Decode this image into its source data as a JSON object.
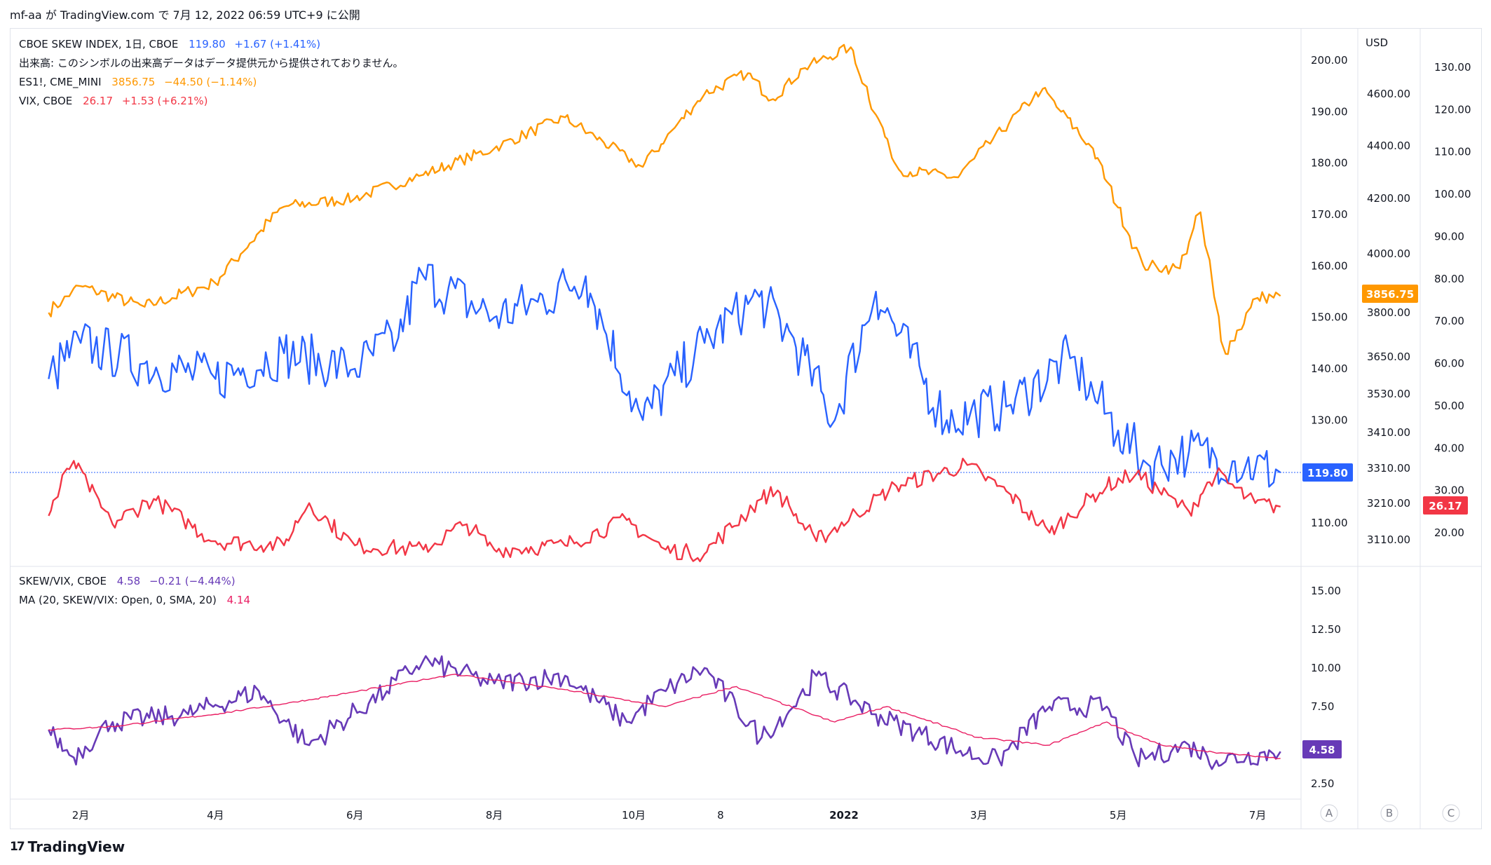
{
  "header": {
    "text": "mf-aa が TradingView.com で 7月 12, 2022 06:59 UTC+9 に公開"
  },
  "footer": {
    "brand": "TradingView",
    "logo_glyph": "17"
  },
  "legend": {
    "skew": {
      "name": "CBOE SKEW INDEX, 1日, CBOE",
      "value": "119.80",
      "change": "+1.67 (+1.41%)",
      "color": "#2962ff"
    },
    "volume_note": "出来高: このシンボルの出来高データはデータ提供元から提供されておりません。",
    "es": {
      "name": "ES1!, CME_MINI",
      "value": "3856.75",
      "change": "−44.50 (−1.14%)",
      "color": "#ff9800"
    },
    "vix": {
      "name": "VIX, CBOE",
      "value": "26.17",
      "change": "+1.53 (+6.21%)",
      "color": "#f23645"
    },
    "ratio": {
      "name": "SKEW/VIX, CBOE",
      "value": "4.58",
      "change": "−0.21 (−4.44%)",
      "color": "#673ab7"
    },
    "ma": {
      "name": "MA (20, SKEW/VIX: Open, 0, SMA, 20)",
      "value": "4.14",
      "color": "#e91e63"
    }
  },
  "axes": {
    "scale_a_ticks": [
      "200.00",
      "190.00",
      "180.00",
      "170.00",
      "160.00",
      "150.00",
      "140.00",
      "130.00",
      "110.00"
    ],
    "usd_label": "USD",
    "scale_b_ticks": [
      "4600.00",
      "4400.00",
      "4200.00",
      "4000.00",
      "3800.00",
      "3650.00",
      "3530.00",
      "3410.00",
      "3310.00",
      "3210.00",
      "3110.00"
    ],
    "scale_c_ticks": [
      "130.00",
      "120.00",
      "110.00",
      "100.00",
      "90.00",
      "80.00",
      "70.00",
      "60.00",
      "50.00",
      "40.00",
      "30.00",
      "20.00"
    ],
    "ratio_ticks": [
      "15.00",
      "12.50",
      "10.00",
      "7.50",
      "2.50"
    ],
    "x_labels": [
      "2月",
      "4月",
      "6月",
      "8月",
      "10月",
      "8",
      "2022",
      "3月",
      "5月",
      "7月"
    ],
    "scale_buttons": [
      "A",
      "B",
      "C"
    ]
  },
  "price_tags": {
    "skew": {
      "label": "119.80",
      "color": "#2962ff"
    },
    "es": {
      "label": "3856.75",
      "color": "#ff9800"
    },
    "vix": {
      "label": "26.17",
      "color": "#f23645"
    },
    "ratio": {
      "label": "4.58",
      "color": "#673ab7"
    }
  },
  "chart_data": {
    "type": "line",
    "period": "2021-01 to 2022-07 (daily)",
    "x_ticks": [
      "2月",
      "4月",
      "6月",
      "8月",
      "10月",
      "8",
      "2022",
      "3月",
      "5月",
      "7月"
    ],
    "panes": [
      {
        "series": [
          {
            "name": "CBOE SKEW INDEX",
            "scale": "A",
            "x": [
              "2021-01-18",
              "2021-02-01",
              "2021-03-01",
              "2021-04-01",
              "2021-05-01",
              "2021-06-01",
              "2021-06-20",
              "2021-07-01",
              "2021-08-01",
              "2021-08-20",
              "2021-09-10",
              "2021-10-05",
              "2021-11-01",
              "2021-11-25",
              "2021-12-10",
              "2021-12-28",
              "2022-01-15",
              "2022-02-15",
              "2022-03-15",
              "2022-04-10",
              "2022-05-01",
              "2022-05-15",
              "2022-06-01",
              "2022-06-20",
              "2022-07-11"
            ],
            "values": [
              138,
              145,
              141,
              138,
              143,
              140,
              146,
              158,
              150,
              153,
              158,
              130,
              145,
              154,
              146,
              130,
              155,
              130,
              133,
              142,
              128,
              121,
              124,
              122,
              119.8
            ]
          },
          {
            "name": "ES1!",
            "scale": "B",
            "x": [
              "2021-01-18",
              "2021-02-01",
              "2021-03-01",
              "2021-04-01",
              "2021-05-01",
              "2021-06-01",
              "2021-07-01",
              "2021-08-01",
              "2021-09-01",
              "2021-10-05",
              "2021-11-01",
              "2021-11-20",
              "2021-12-01",
              "2021-12-15",
              "2022-01-04",
              "2022-01-25",
              "2022-02-20",
              "2022-03-29",
              "2022-04-20",
              "2022-05-12",
              "2022-05-28",
              "2022-06-06",
              "2022-06-17",
              "2022-07-01",
              "2022-07-11"
            ],
            "values": [
              3800,
              3890,
              3820,
              3900,
              4170,
              4200,
              4290,
              4390,
              4510,
              4320,
              4600,
              4680,
              4580,
              4700,
              4780,
              4310,
              4280,
              4620,
              4390,
              3960,
              3950,
              4150,
              3660,
              3850,
              3856.75
            ]
          },
          {
            "name": "VIX",
            "scale": "C",
            "x": [
              "2021-01-18",
              "2021-01-29",
              "2021-02-15",
              "2021-03-05",
              "2021-04-01",
              "2021-05-01",
              "2021-05-12",
              "2021-06-01",
              "2021-07-01",
              "2021-07-20",
              "2021-08-01",
              "2021-09-01",
              "2021-09-28",
              "2021-10-15",
              "2021-11-01",
              "2021-11-26",
              "2021-12-03",
              "2021-12-20",
              "2022-01-24",
              "2022-02-24",
              "2022-03-15",
              "2022-04-01",
              "2022-04-26",
              "2022-05-09",
              "2022-06-01",
              "2022-06-13",
              "2022-06-30",
              "2022-07-11"
            ],
            "values": [
              24,
              37,
              22,
              28,
              18,
              17,
              27,
              17,
              16,
              22,
              16,
              17,
              23,
              16,
              15,
              28,
              30,
              18,
              31,
              36,
              29,
              20,
              31,
              34,
              25,
              34,
              27,
              26.17
            ]
          }
        ]
      },
      {
        "series": [
          {
            "name": "SKEW/VIX",
            "values_summary": "ranges ~3.5–11, last 4.58",
            "x": [
              "2021-01-18",
              "2021-01-29",
              "2021-02-15",
              "2021-03-20",
              "2021-04-20",
              "2021-05-12",
              "2021-06-15",
              "2021-07-01",
              "2021-08-01",
              "2021-09-01",
              "2021-09-28",
              "2021-10-15",
              "2021-11-01",
              "2021-11-26",
              "2021-12-10",
              "2021-12-20",
              "2022-01-15",
              "2022-02-24",
              "2022-03-10",
              "2022-04-01",
              "2022-04-26",
              "2022-05-09",
              "2022-06-01",
              "2022-06-13",
              "2022-07-11"
            ],
            "values": [
              6,
              4.2,
              6.5,
              7,
              8.5,
              5,
              8.5,
              10.5,
              9,
              9.5,
              6.5,
              8.5,
              10,
              5.5,
              7.5,
              9.5,
              7,
              4.5,
              4,
              7.5,
              7.5,
              4,
              5,
              4,
              4.58
            ]
          },
          {
            "name": "MA (20)",
            "x": [
              "2021-01-18",
              "2021-02-15",
              "2021-04-01",
              "2021-05-15",
              "2021-07-15",
              "2021-09-01",
              "2021-10-15",
              "2021-11-15",
              "2021-12-28",
              "2022-01-20",
              "2022-03-01",
              "2022-04-01",
              "2022-04-26",
              "2022-05-20",
              "2022-06-15",
              "2022-07-11"
            ],
            "values": [
              6,
              6.2,
              7,
              8,
              9.6,
              8.6,
              7.5,
              8.8,
              6.5,
              7.5,
              5.5,
              5,
              6.5,
              5,
              4.5,
              4.14
            ]
          }
        ],
        "ylim": [
          1,
          16
        ]
      }
    ]
  }
}
